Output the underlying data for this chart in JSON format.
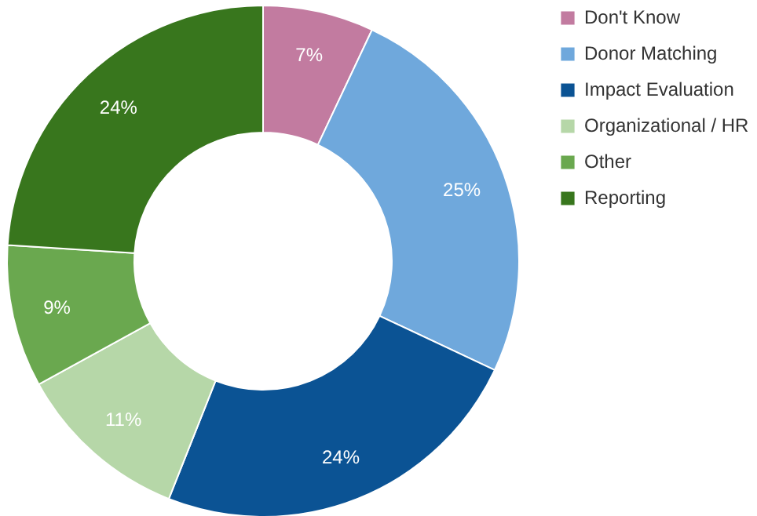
{
  "chart_data": {
    "type": "donut",
    "categories": [
      "Don't Know",
      "Donor Matching",
      "Impact Evaluation",
      "Organizational / HR",
      "Other",
      "Reporting"
    ],
    "values": [
      7,
      25,
      24,
      11,
      9,
      24
    ],
    "colors": [
      "#c27ba0",
      "#6fa8dc",
      "#0b5394",
      "#b6d7a8",
      "#6aa84f",
      "#38761d"
    ],
    "value_labels": [
      "7%",
      "25%",
      "24%",
      "11%",
      "9%",
      "24%"
    ],
    "legend": "right"
  }
}
